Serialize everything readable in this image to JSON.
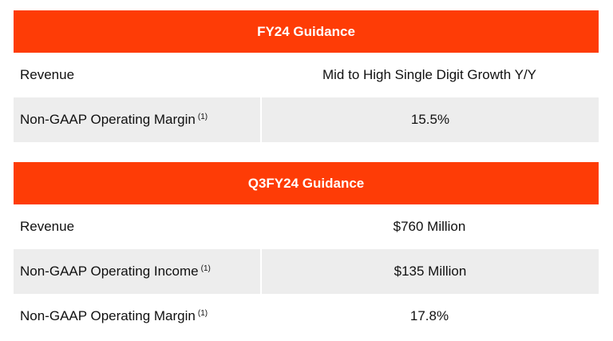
{
  "tables": [
    {
      "title": "FY24 Guidance",
      "rows": [
        {
          "label": "Revenue",
          "note": "",
          "value": "Mid to High Single Digit Growth Y/Y"
        },
        {
          "label": "Non-GAAP Operating Margin",
          "note": "(1)",
          "value": "15.5%"
        }
      ]
    },
    {
      "title": "Q3FY24 Guidance",
      "rows": [
        {
          "label": "Revenue",
          "note": "",
          "value": "$760 Million"
        },
        {
          "label": "Non-GAAP Operating Income",
          "note": "(1)",
          "value": "$135 Million"
        },
        {
          "label": "Non-GAAP Operating Margin",
          "note": "(1)",
          "value": "17.8%"
        }
      ]
    }
  ],
  "colors": {
    "header": "#fe3c06",
    "stripe": "#ededed"
  }
}
